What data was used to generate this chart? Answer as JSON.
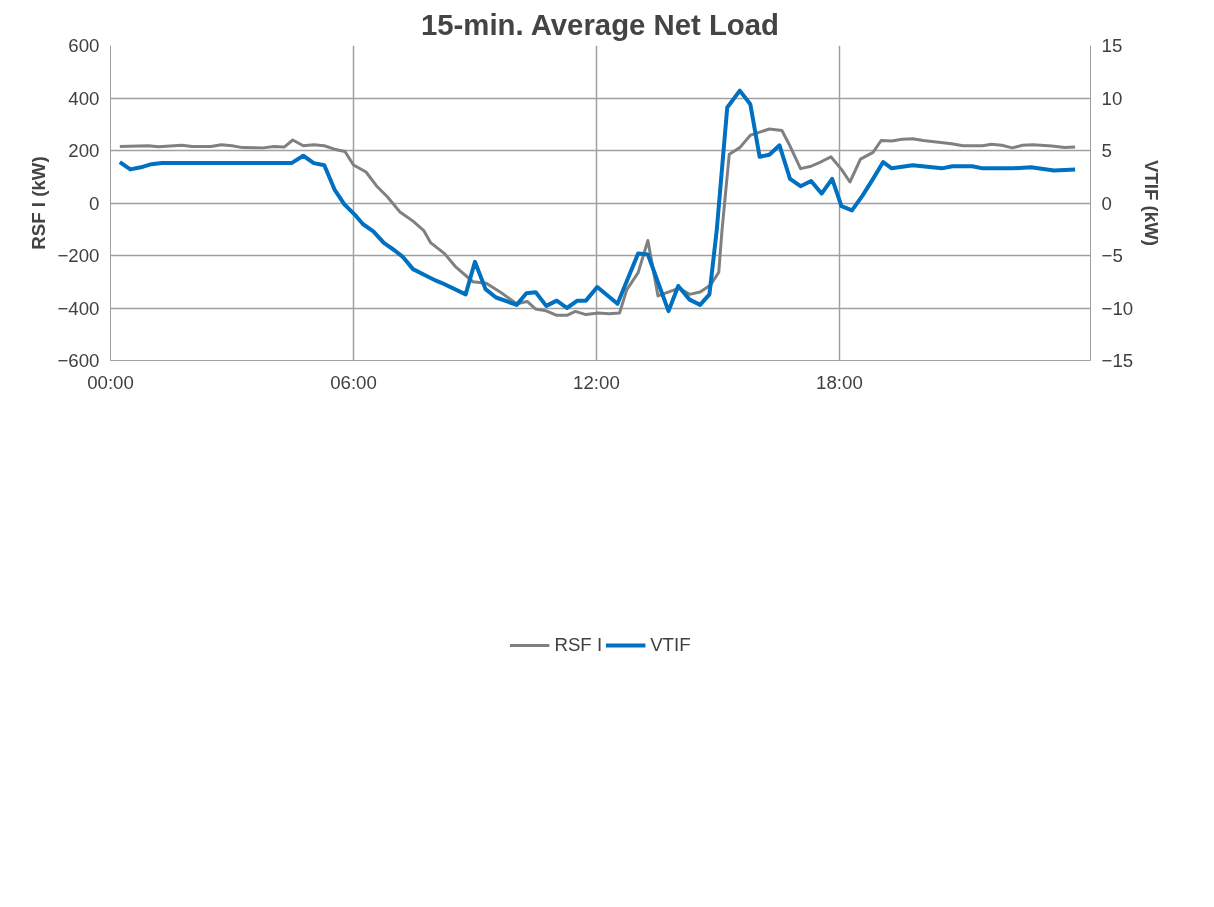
{
  "chart_data": {
    "type": "line",
    "title": "15-min. Average Net Load",
    "ylabel": "RSF I (kW)",
    "y2label": "VTIF (kW)",
    "xlim": [
      0,
      24.2
    ],
    "xticks": [
      {
        "value": 0,
        "label": "00:00"
      },
      {
        "value": 6,
        "label": "06:00"
      },
      {
        "value": 12,
        "label": "12:00"
      },
      {
        "value": 18,
        "label": "18:00"
      }
    ],
    "ylim": [
      -600,
      600
    ],
    "yticks": [
      -600,
      -400,
      -200,
      0,
      200,
      400,
      600
    ],
    "y2lim": [
      -15,
      15
    ],
    "y2ticks": [
      -15,
      -10,
      -5,
      0,
      5,
      10,
      15
    ],
    "grid": true,
    "legend": "bottom",
    "line_style": "solid",
    "marker": "none",
    "series": [
      {
        "name": "RSF I",
        "color": "#808080",
        "x": [
          0.23,
          0.93,
          1.19,
          1.76,
          2.02,
          2.48,
          2.74,
          3.0,
          3.26,
          3.78,
          4.03,
          4.29,
          4.5,
          4.76,
          5.02,
          5.28,
          5.53,
          5.79,
          6.0,
          6.31,
          6.57,
          6.83,
          7.14,
          7.47,
          7.73,
          7.91,
          8.25,
          8.51,
          8.95,
          9.28,
          9.65,
          10.03,
          10.29,
          10.5,
          10.76,
          11.02,
          11.27,
          11.48,
          11.74,
          12.05,
          12.31,
          12.57,
          12.75,
          13.03,
          13.27,
          13.52,
          14.04,
          14.3,
          14.56,
          14.82,
          15.02,
          15.1,
          15.28,
          15.54,
          15.8,
          16.27,
          16.58,
          16.78,
          17.04,
          17.3,
          17.56,
          17.79,
          18.05,
          18.26,
          18.52,
          18.83,
          19.03,
          19.29,
          19.55,
          19.81,
          20.07,
          20.77,
          21.05,
          21.54,
          21.75,
          22.01,
          22.27,
          22.52,
          22.78,
          23.25,
          23.56,
          23.82
        ],
        "values": [
          215,
          218,
          214,
          220,
          215,
          215,
          222,
          218,
          211,
          210,
          215,
          213,
          240,
          218,
          222,
          218,
          205,
          196,
          145,
          118,
          65,
          25,
          -33,
          -69,
          -104,
          -152,
          -193,
          -241,
          -300,
          -306,
          -342,
          -384,
          -375,
          -404,
          -411,
          -428,
          -428,
          -413,
          -425,
          -419,
          -422,
          -419,
          -330,
          -265,
          -143,
          -354,
          -324,
          -348,
          -339,
          -312,
          -264,
          -104,
          186,
          211,
          258,
          282,
          276,
          217,
          131,
          140,
          158,
          176,
          128,
          80,
          167,
          193,
          238,
          236,
          243,
          245,
          238,
          226,
          218,
          218,
          224,
          220,
          210,
          220,
          222,
          217,
          211,
          213
        ]
      },
      {
        "name": "VTIF",
        "color": "#0070c0",
        "axis": "y2",
        "x": [
          0.23,
          0.49,
          0.75,
          1.01,
          1.27,
          3.18,
          3.44,
          4.47,
          4.76,
          5.02,
          5.28,
          5.53,
          5.77,
          6.03,
          6.23,
          6.49,
          6.75,
          7.01,
          7.21,
          7.47,
          7.78,
          8.04,
          8.17,
          8.77,
          9.0,
          9.26,
          9.52,
          10.03,
          10.27,
          10.5,
          10.76,
          11.02,
          11.27,
          11.53,
          11.74,
          12.02,
          12.52,
          13.03,
          13.27,
          13.78,
          14.02,
          14.3,
          14.56,
          14.79,
          14.97,
          15.23,
          15.54,
          15.8,
          16.03,
          16.27,
          16.52,
          16.78,
          17.04,
          17.3,
          17.56,
          17.82,
          18.05,
          18.31,
          18.57,
          18.83,
          19.08,
          19.29,
          19.81,
          20.53,
          20.79,
          21.28,
          21.54,
          22.27,
          22.73,
          23.3,
          23.82
        ],
        "values": [
          3.9,
          3.2,
          3.4,
          3.7,
          3.8,
          3.8,
          3.8,
          3.8,
          4.5,
          3.8,
          3.6,
          1.3,
          -0.1,
          -1.1,
          -2.0,
          -2.7,
          -3.8,
          -4.5,
          -5.1,
          -6.3,
          -6.9,
          -7.4,
          -7.6,
          -8.7,
          -5.6,
          -8.2,
          -9.0,
          -9.7,
          -8.6,
          -8.5,
          -9.8,
          -9.3,
          -10.0,
          -9.3,
          -9.3,
          -8.0,
          -9.6,
          -4.8,
          -4.9,
          -10.3,
          -7.9,
          -9.2,
          -9.7,
          -8.7,
          -2.6,
          9.1,
          10.7,
          9.4,
          4.4,
          4.6,
          5.5,
          2.3,
          1.6,
          2.1,
          0.9,
          2.3,
          -0.3,
          -0.7,
          0.7,
          2.3,
          3.9,
          3.3,
          3.6,
          3.3,
          3.5,
          3.5,
          3.3,
          3.3,
          3.4,
          3.1,
          3.2
        ]
      }
    ]
  }
}
